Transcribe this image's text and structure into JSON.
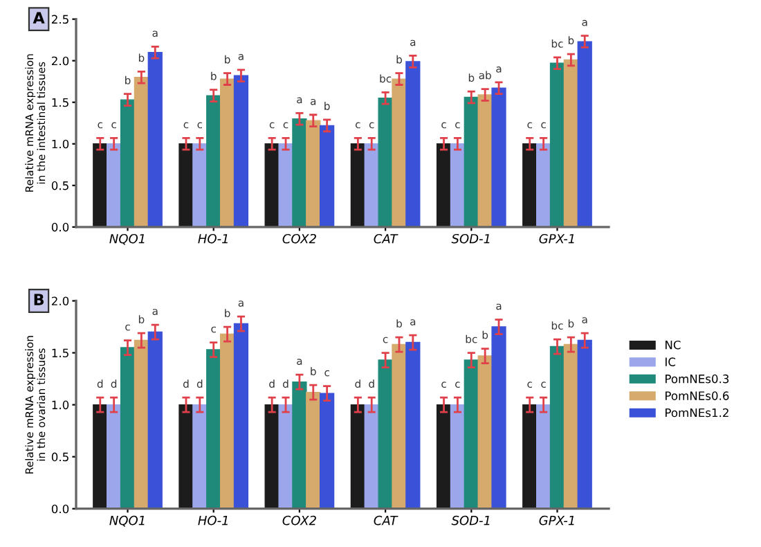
{
  "chart_data": [
    {
      "type": "bar",
      "title": "A",
      "ylabel": "Relative mRNA expression\nin the intestinal tissues",
      "categories": [
        "NQO1",
        "HO-1",
        "COX2",
        "CAT",
        "SOD-1",
        "GPX-1"
      ],
      "ylim": [
        0,
        2.5
      ],
      "yticks": [
        {
          "value": 0,
          "label": "0.0"
        },
        {
          "value": 0.5,
          "label": "0.5"
        },
        {
          "value": 1,
          "label": "1.0"
        },
        {
          "value": 1.5,
          "label": "1.5"
        },
        {
          "value": 2,
          "label": "2.0"
        },
        {
          "value": 2.5,
          "label": "2.5"
        }
      ],
      "grid": false,
      "legend": false,
      "series": [
        {
          "color": "#1c1c1c",
          "values": [
            1,
            1,
            1,
            1,
            1,
            1
          ],
          "errors": [
            0.07,
            0.07,
            0.07,
            0.07,
            0.07,
            0.07
          ],
          "value_labels": [
            "c",
            "c",
            "c",
            "c",
            "c",
            "c"
          ]
        },
        {
          "color": "#9ba7ea",
          "values": [
            1,
            1,
            1,
            1,
            1,
            1
          ],
          "errors": [
            0.07,
            0.07,
            0.07,
            0.07,
            0.07,
            0.07
          ],
          "value_labels": [
            "c",
            "c",
            "c",
            "c",
            "c",
            "c"
          ]
        },
        {
          "color": "#1f8a7a",
          "values": [
            1.53,
            1.58,
            1.3,
            1.55,
            1.56,
            1.97
          ],
          "errors": [
            0.07,
            0.07,
            0.07,
            0.07,
            0.07,
            0.07
          ],
          "value_labels": [
            "b",
            "b",
            "a",
            "bc",
            "b",
            "bc"
          ]
        },
        {
          "color": "#d6aa6c",
          "values": [
            1.8,
            1.78,
            1.28,
            1.78,
            1.59,
            2.01
          ],
          "errors": [
            0.07,
            0.07,
            0.07,
            0.07,
            0.07,
            0.07
          ],
          "value_labels": [
            "b",
            "b",
            "a",
            "b",
            "ab",
            "b"
          ]
        },
        {
          "color": "#3a52d8",
          "values": [
            2.1,
            1.82,
            1.22,
            1.99,
            1.67,
            2.23
          ],
          "errors": [
            0.07,
            0.07,
            0.07,
            0.07,
            0.07,
            0.07
          ],
          "value_labels": [
            "a",
            "a",
            "b",
            "a",
            "a",
            "a"
          ]
        }
      ]
    },
    {
      "type": "bar",
      "title": "B",
      "ylabel": "Relative mRNA expression\nin the ovarian tissues",
      "categories": [
        "NQO1",
        "HO-1",
        "COX2",
        "CAT",
        "SOD-1",
        "GPX-1"
      ],
      "ylim": [
        0,
        2.0
      ],
      "yticks": [
        {
          "value": 0,
          "label": "0.0"
        },
        {
          "value": 0.5,
          "label": "0.5"
        },
        {
          "value": 1,
          "label": "1.0"
        },
        {
          "value": 1.5,
          "label": "1.5"
        },
        {
          "value": 2,
          "label": "2.0"
        }
      ],
      "grid": false,
      "legend": "right",
      "series": [
        {
          "name": "NC",
          "color": "#1c1c1c",
          "values": [
            1,
            1,
            1,
            1,
            1,
            1
          ],
          "errors": [
            0.07,
            0.07,
            0.07,
            0.07,
            0.07,
            0.07
          ],
          "value_labels": [
            "d",
            "d",
            "d",
            "d",
            "c",
            "c"
          ]
        },
        {
          "name": "IC",
          "color": "#9ba7ea",
          "values": [
            1,
            1,
            1,
            1,
            1,
            1
          ],
          "errors": [
            0.07,
            0.07,
            0.07,
            0.07,
            0.07,
            0.07
          ],
          "value_labels": [
            "d",
            "d",
            "d",
            "d",
            "c",
            "c"
          ]
        },
        {
          "name": "PomNEs0.3",
          "color": "#1f8a7a",
          "values": [
            1.55,
            1.53,
            1.22,
            1.43,
            1.43,
            1.56
          ],
          "errors": [
            0.07,
            0.07,
            0.07,
            0.07,
            0.07,
            0.07
          ],
          "value_labels": [
            "c",
            "c",
            "a",
            "c",
            "bc",
            "bc"
          ]
        },
        {
          "name": "PomNEs0.6",
          "color": "#d6aa6c",
          "values": [
            1.62,
            1.68,
            1.12,
            1.58,
            1.47,
            1.58
          ],
          "errors": [
            0.07,
            0.07,
            0.07,
            0.07,
            0.07,
            0.07
          ],
          "value_labels": [
            "b",
            "b",
            "b",
            "b",
            "b",
            "b"
          ]
        },
        {
          "name": "PomNEs1.2",
          "color": "#3a52d8",
          "values": [
            1.7,
            1.78,
            1.11,
            1.6,
            1.75,
            1.62
          ],
          "errors": [
            0.07,
            0.07,
            0.07,
            0.07,
            0.07,
            0.07
          ],
          "value_labels": [
            "a",
            "a",
            "c",
            "a",
            "a",
            "a"
          ]
        }
      ]
    }
  ]
}
